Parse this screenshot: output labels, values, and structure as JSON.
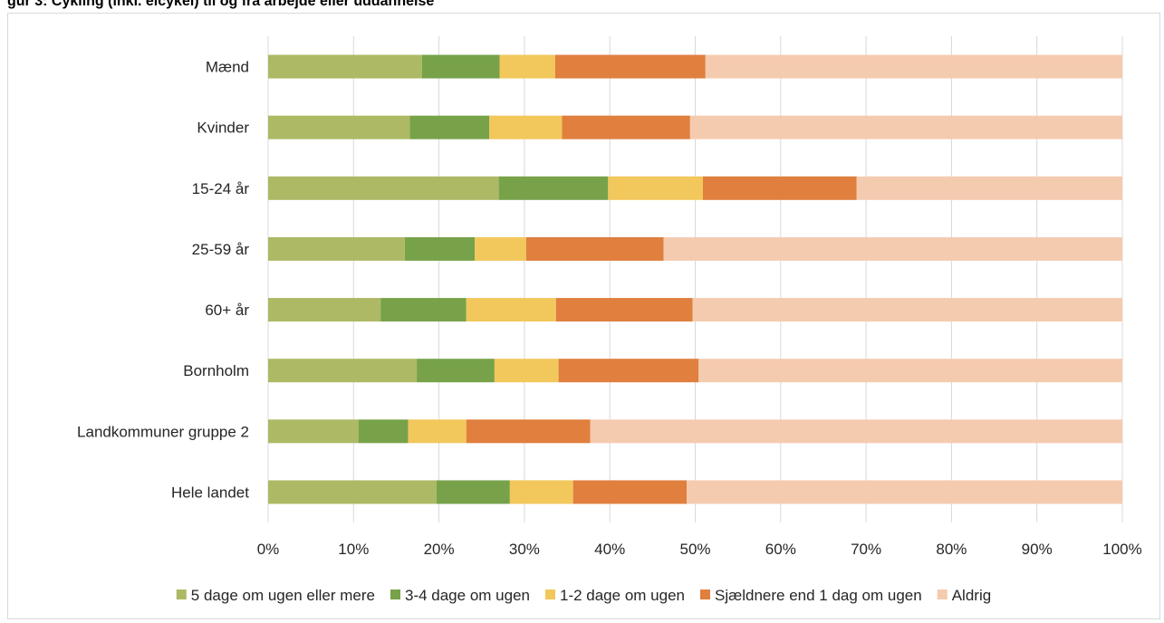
{
  "header": {
    "title": "gur 3: Cykling (inkl. elcykel) til og fra arbejde eller uddannelse"
  },
  "chart_data": {
    "type": "bar",
    "orientation": "horizontal",
    "stacked": "percent",
    "categories": [
      "Mænd",
      "Kvinder",
      "15-24 år",
      "25-59 år",
      "60+ år",
      "Bornholm",
      "Landkommuner gruppe 2",
      "Hele landet"
    ],
    "series": [
      {
        "name": "5 dage om ugen eller mere",
        "color": "#adb964",
        "values": [
          18.0,
          16.6,
          27.0,
          16.0,
          13.2,
          17.4,
          10.6,
          19.7
        ]
      },
      {
        "name": "3-4 dage om ugen",
        "color": "#77a24a",
        "values": [
          9.1,
          9.3,
          12.8,
          8.2,
          10.0,
          9.1,
          5.8,
          8.6
        ]
      },
      {
        "name": "1-2 dage om ugen",
        "color": "#f2c75c",
        "values": [
          6.5,
          8.5,
          11.1,
          6.0,
          10.5,
          7.5,
          6.8,
          7.4
        ]
      },
      {
        "name": "Sjældnere end 1 dag om ugen",
        "color": "#e07f3e",
        "values": [
          17.6,
          15.0,
          18.0,
          16.1,
          16.0,
          16.4,
          14.5,
          13.3
        ]
      },
      {
        "name": "Aldrig",
        "color": "#f5cbb0",
        "values": [
          48.8,
          50.6,
          31.1,
          53.7,
          50.3,
          49.6,
          62.3,
          51.0
        ]
      }
    ],
    "xlim": [
      0,
      100
    ],
    "xticks": [
      "0%",
      "10%",
      "20%",
      "30%",
      "40%",
      "50%",
      "60%",
      "70%",
      "80%",
      "90%",
      "100%"
    ],
    "grid": true,
    "legend": "bottom"
  }
}
